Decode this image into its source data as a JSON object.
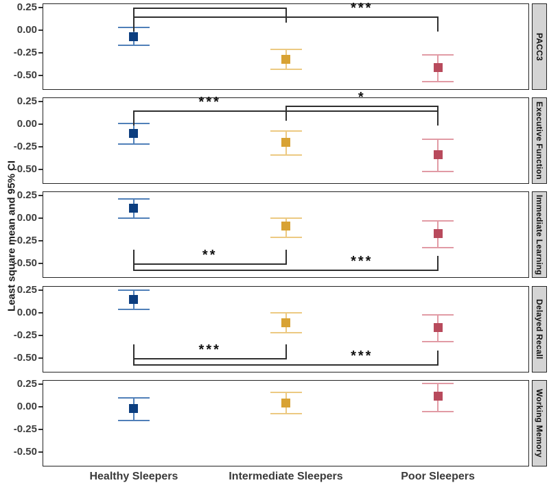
{
  "chart_data": {
    "type": "scatter",
    "subtype": "faceted-point-range",
    "ylabel": "Least square mean and 95% CI",
    "categories": [
      "Healthy Sleepers",
      "Intermediate Sleepers",
      "Poor Sleepers"
    ],
    "category_styles": [
      {
        "marker_color": "#0c3e7f",
        "errorbar_color": "#4f7fb8"
      },
      {
        "marker_color": "#d8a233",
        "errorbar_color": "#ecc981"
      },
      {
        "marker_color": "#b84a5c",
        "errorbar_color": "#e19aa4"
      }
    ],
    "yticks": [
      {
        "value": 0.25,
        "label": "0.25"
      },
      {
        "value": 0.0,
        "label": "0.00"
      },
      {
        "value": -0.25,
        "label": "-0.25"
      },
      {
        "value": -0.5,
        "label": "-0.50"
      }
    ],
    "ylim": [
      0.295,
      -0.66
    ],
    "grid": "off",
    "legend": "none",
    "strip_bg": "#d4d4d4",
    "bracket_color": "#2e2e2e",
    "facets": [
      {
        "label": "PACC3",
        "points": [
          {
            "category": "Healthy Sleepers",
            "mean": -0.07,
            "ci_high": 0.03,
            "ci_low": -0.17
          },
          {
            "category": "Intermediate Sleepers",
            "mean": -0.32,
            "ci_high": -0.21,
            "ci_low": -0.43
          },
          {
            "category": "Poor Sleepers",
            "mean": -0.41,
            "ci_high": -0.27,
            "ci_low": -0.57
          }
        ],
        "brackets": [
          {
            "from": 0,
            "to": 1,
            "label": "***",
            "y": 0.24,
            "tick_dir": "down",
            "label_between": [
              0,
              1
            ]
          },
          {
            "from": 0,
            "to": 2,
            "label": "***",
            "y": 0.14,
            "tick_dir": "down",
            "label_between": [
              1,
              2
            ]
          }
        ]
      },
      {
        "label": "Executive Function",
        "points": [
          {
            "category": "Healthy Sleepers",
            "mean": -0.1,
            "ci_high": 0.01,
            "ci_low": -0.22
          },
          {
            "category": "Intermediate Sleepers",
            "mean": -0.2,
            "ci_high": -0.08,
            "ci_low": -0.34
          },
          {
            "category": "Poor Sleepers",
            "mean": -0.34,
            "ci_high": -0.17,
            "ci_low": -0.52
          }
        ],
        "brackets": [
          {
            "from": 1,
            "to": 2,
            "label": "*",
            "y": 0.2,
            "tick_dir": "down",
            "label_between": [
              1,
              2
            ]
          },
          {
            "from": 0,
            "to": 2,
            "label": "***",
            "y": 0.14,
            "tick_dir": "down",
            "label_between": [
              0,
              1
            ]
          }
        ]
      },
      {
        "label": "Immediate Learning",
        "points": [
          {
            "category": "Healthy Sleepers",
            "mean": 0.11,
            "ci_high": 0.21,
            "ci_low": 0.0
          },
          {
            "category": "Intermediate Sleepers",
            "mean": -0.09,
            "ci_high": 0.0,
            "ci_low": -0.21
          },
          {
            "category": "Poor Sleepers",
            "mean": -0.17,
            "ci_high": -0.03,
            "ci_low": -0.33
          }
        ],
        "brackets": [
          {
            "from": 0,
            "to": 1,
            "label": "**",
            "y": -0.51,
            "tick_dir": "up",
            "label_between": [
              0,
              1
            ]
          },
          {
            "from": 0,
            "to": 2,
            "label": "***",
            "y": -0.58,
            "tick_dir": "up",
            "label_between": [
              1,
              2
            ]
          }
        ]
      },
      {
        "label": "Delayed Recall",
        "points": [
          {
            "category": "Healthy Sleepers",
            "mean": 0.15,
            "ci_high": 0.25,
            "ci_low": 0.04
          },
          {
            "category": "Intermediate Sleepers",
            "mean": -0.11,
            "ci_high": 0.0,
            "ci_low": -0.22
          },
          {
            "category": "Poor Sleepers",
            "mean": -0.16,
            "ci_high": -0.02,
            "ci_low": -0.32
          }
        ],
        "brackets": [
          {
            "from": 0,
            "to": 1,
            "label": "***",
            "y": -0.51,
            "tick_dir": "up",
            "label_between": [
              0,
              1
            ]
          },
          {
            "from": 0,
            "to": 2,
            "label": "***",
            "y": -0.58,
            "tick_dir": "up",
            "label_between": [
              1,
              2
            ]
          }
        ]
      },
      {
        "label": "Working Memory",
        "points": [
          {
            "category": "Healthy Sleepers",
            "mean": -0.02,
            "ci_high": 0.1,
            "ci_low": -0.15
          },
          {
            "category": "Intermediate Sleepers",
            "mean": 0.04,
            "ci_high": 0.16,
            "ci_low": -0.08
          },
          {
            "category": "Poor Sleepers",
            "mean": 0.12,
            "ci_high": 0.26,
            "ci_low": -0.05
          }
        ],
        "brackets": []
      }
    ]
  }
}
